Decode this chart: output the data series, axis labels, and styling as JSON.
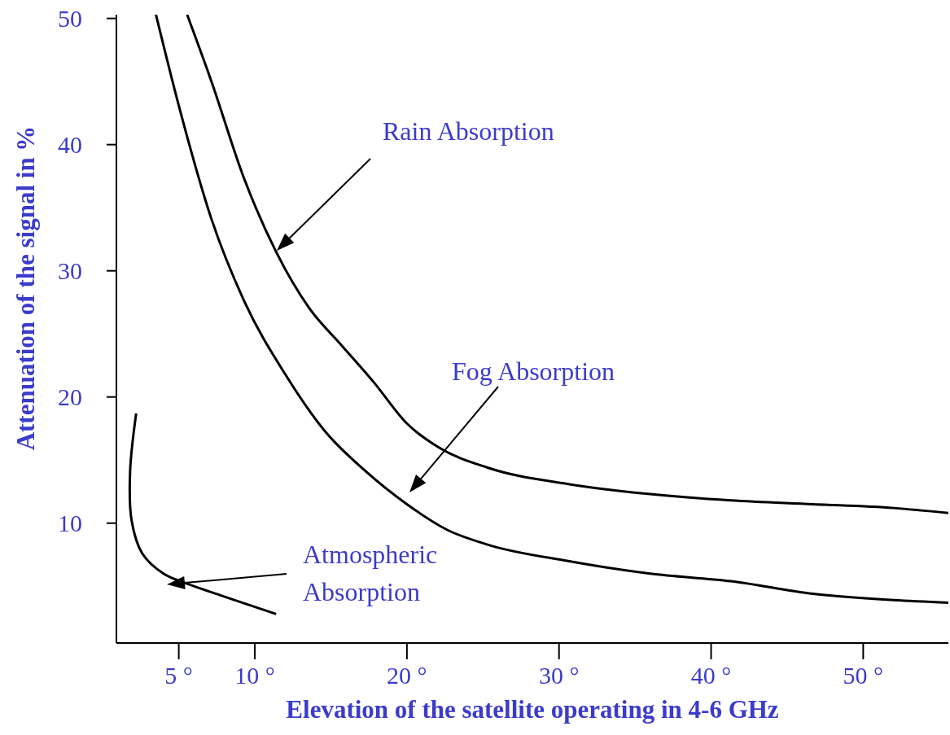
{
  "chart_data": {
    "type": "line",
    "xlabel": "Elevation of the satellite operating in 4-6 GHz",
    "ylabel": "Attenuation of the signal in %",
    "xlim": [
      0.9,
      55.6
    ],
    "ylim": [
      0.5,
      50.3
    ],
    "xticks": [
      {
        "value": 5,
        "label": "5 °"
      },
      {
        "value": 10,
        "label": "10 °"
      },
      {
        "value": 20,
        "label": "20 °"
      },
      {
        "value": 30,
        "label": "30 °"
      },
      {
        "value": 40,
        "label": "40 °"
      },
      {
        "value": 50,
        "label": "50 °"
      }
    ],
    "yticks": [
      10,
      20,
      30,
      40,
      50
    ],
    "grid": false,
    "marker": "none",
    "line_style": "solid",
    "series": [
      {
        "color": "#000000",
        "x": [
          5.55,
          7.15,
          9.3,
          11.4,
          13.6,
          15.7,
          17.8,
          20,
          22.1,
          25.3,
          30.6,
          36,
          41.3,
          46.7,
          52,
          55.6
        ],
        "values": [
          50.3,
          45,
          37.3,
          31.5,
          27,
          24.1,
          21.2,
          17.9,
          16,
          14.4,
          13.1,
          12.3,
          11.8,
          11.5,
          11.2,
          10.8
        ]
      },
      {
        "color": "#000000",
        "x": [
          3.5,
          5,
          7.15,
          9.3,
          12,
          14.6,
          17.3,
          20,
          22.6,
          25.3,
          30.6,
          36,
          41.3,
          46.7,
          52,
          55.6
        ],
        "values": [
          50.3,
          43.1,
          34.1,
          27.6,
          21.8,
          17.3,
          14.1,
          11.5,
          9.5,
          8.3,
          7,
          6,
          5.4,
          4.4,
          3.9,
          3.7
        ]
      },
      {
        "color": "#000000",
        "x": [
          2.2,
          1.8,
          1.9,
          2.6,
          4,
          5.55,
          7.7,
          11.4
        ],
        "values": [
          18.7,
          14.1,
          10.2,
          7.6,
          6,
          5.2,
          4.3,
          2.8
        ]
      }
    ],
    "annotations": [
      "Rain Absorption",
      "Fog Absorption",
      "Atmospheric\nAbsorption"
    ]
  }
}
